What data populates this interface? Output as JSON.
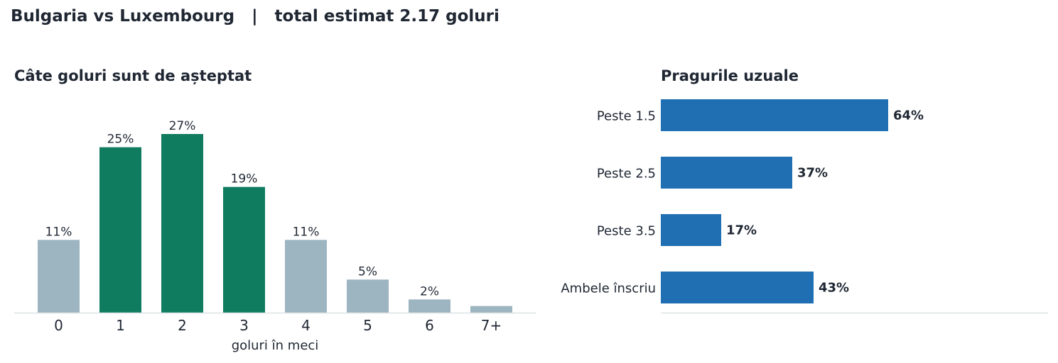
{
  "header": {
    "title": "Bulgaria vs Luxembourg   |   total estimat 2.17 goluri"
  },
  "colors": {
    "highlight_bar": "#0f7b5f",
    "muted_bar": "#9db5c1",
    "threshold_bar": "#206fb2",
    "text": "#1f2733",
    "axis": "#dde1e6"
  },
  "chart_data": [
    {
      "type": "bar",
      "title": "Câte goluri sunt de așteptat",
      "xlabel": "goluri în meci",
      "ylabel": "",
      "categories": [
        "0",
        "1",
        "2",
        "3",
        "4",
        "5",
        "6",
        "7+"
      ],
      "values": [
        11,
        25,
        27,
        19,
        11,
        5,
        2,
        1
      ],
      "data_labels": [
        "11%",
        "25%",
        "27%",
        "19%",
        "11%",
        "5%",
        "2%",
        ""
      ],
      "highlighted": [
        false,
        true,
        true,
        true,
        false,
        false,
        false,
        false
      ],
      "ylim": [
        0,
        30
      ],
      "grid": false
    },
    {
      "type": "bar",
      "orientation": "horizontal",
      "title": "Pragurile uzuale",
      "categories": [
        "Peste 1.5",
        "Peste 2.5",
        "Peste 3.5",
        "Ambele înscriu"
      ],
      "values": [
        64,
        37,
        17,
        43
      ],
      "data_labels": [
        "64%",
        "37%",
        "17%",
        "43%"
      ],
      "xlim": [
        0,
        109
      ],
      "grid": false
    }
  ]
}
